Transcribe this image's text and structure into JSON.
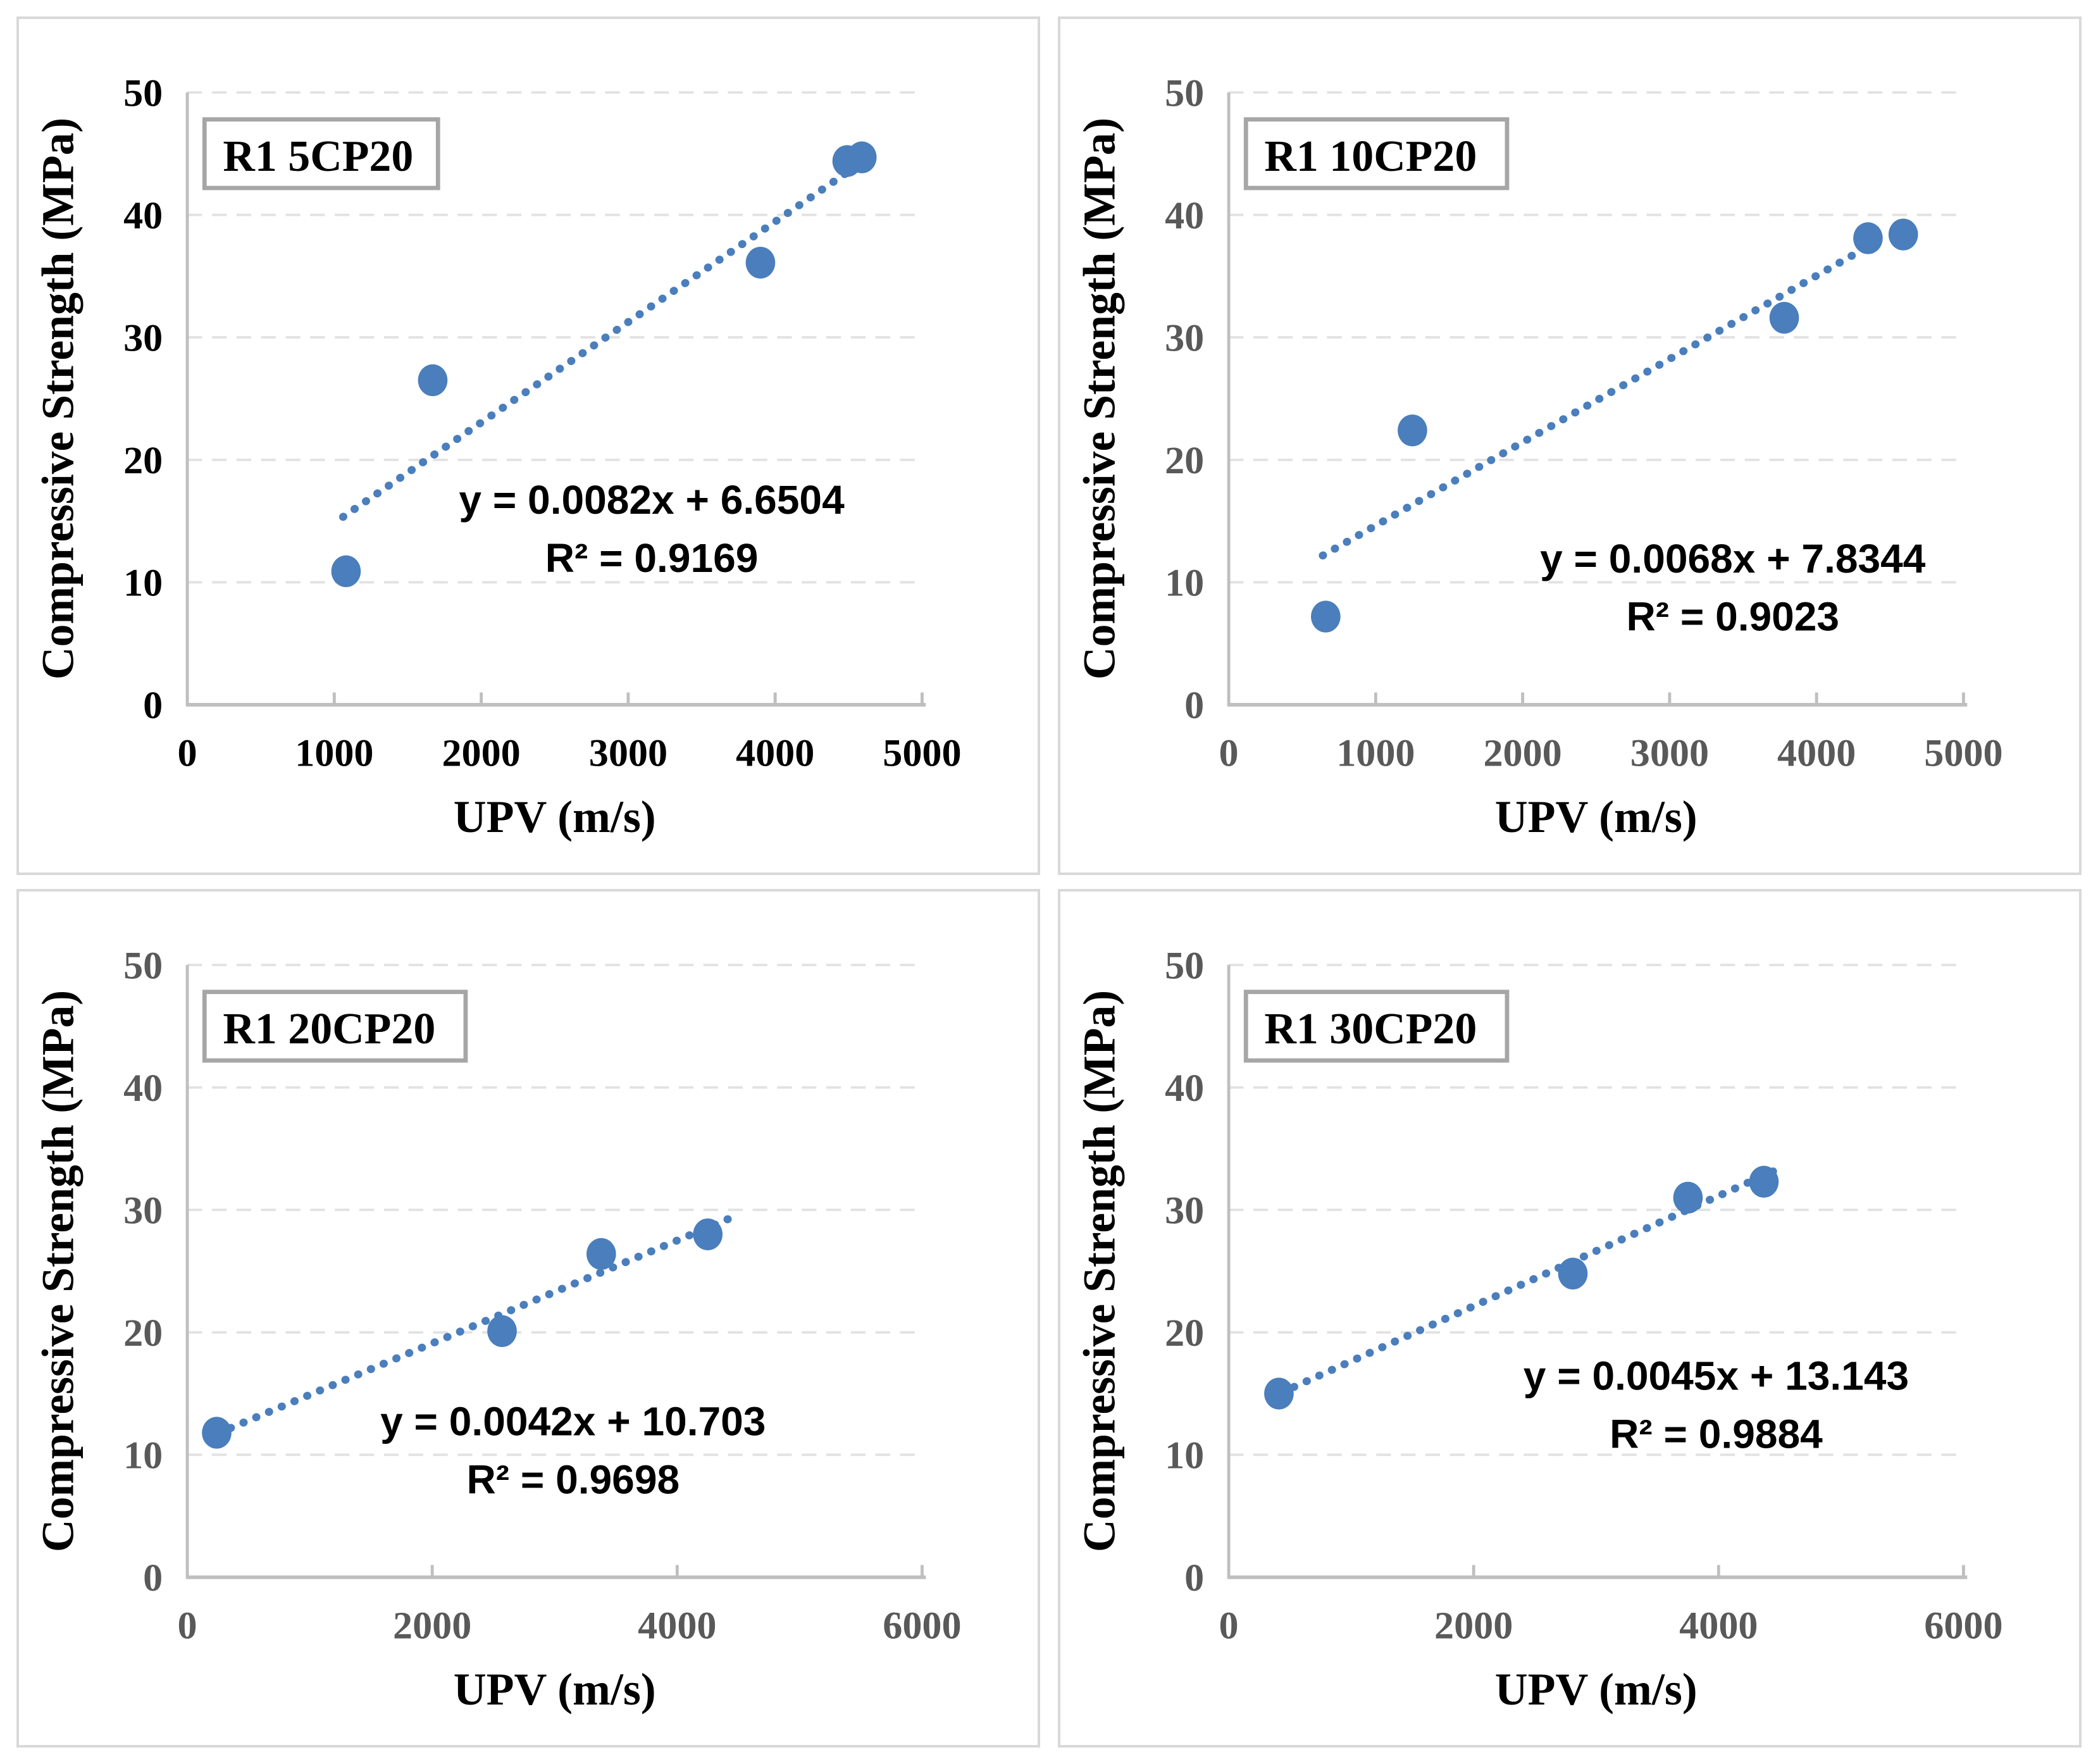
{
  "style": {
    "marker_color": "#4a7ebc",
    "trend_color": "#4a7ebc",
    "axis_color": "#bfbfbf",
    "grid_color": "#e2e2e2",
    "text_color": "#000000",
    "gray_tick_color": "#595959",
    "panel_border": "#d9d9d9",
    "label_box_border": "#a6a6a6",
    "label_box_fill": "#ffffff"
  },
  "chart_data": [
    {
      "type": "scatter",
      "label": "R1 5CP20",
      "xlabel": "UPV (m/s)",
      "ylabel": "Compressive Strength (MPa)",
      "xlim": [
        0,
        5000
      ],
      "ylim": [
        0,
        50
      ],
      "xticks": [
        0,
        1000,
        2000,
        3000,
        4000,
        5000
      ],
      "yticks": [
        0,
        10,
        20,
        30,
        40,
        50
      ],
      "grid": "horizontal-dashed",
      "legend": "none",
      "tick_label_color": "#000000",
      "points": [
        [
          1080,
          10.9
        ],
        [
          1670,
          26.5
        ],
        [
          3900,
          36.1
        ],
        [
          4490,
          44.4
        ],
        [
          4590,
          44.7
        ]
      ],
      "trendline": {
        "slope": 0.0082,
        "intercept": 6.6504,
        "x_start": 1060,
        "x_end": 4620,
        "style": "dotted"
      },
      "equation": "y = 0.0082x + 6.6504",
      "r2": "R² = 0.9169",
      "annotation_pos": [
        3160,
        16.8
      ]
    },
    {
      "type": "scatter",
      "label": "R1 10CP20",
      "xlabel": "UPV (m/s)",
      "ylabel": "Compressive Strength (MPa)",
      "xlim": [
        0,
        5000
      ],
      "ylim": [
        0,
        50
      ],
      "xticks": [
        0,
        1000,
        2000,
        3000,
        4000,
        5000
      ],
      "yticks": [
        0,
        10,
        20,
        30,
        40,
        50
      ],
      "grid": "horizontal-dashed",
      "legend": "none",
      "tick_label_color": "#595959",
      "points": [
        [
          660,
          7.2
        ],
        [
          1250,
          22.4
        ],
        [
          3780,
          31.6
        ],
        [
          4350,
          38.1
        ],
        [
          4590,
          38.4
        ]
      ],
      "trendline": {
        "slope": 0.0068,
        "intercept": 7.8344,
        "x_start": 640,
        "x_end": 4480,
        "style": "dotted"
      },
      "equation": "y = 0.0068x + 7.8344",
      "r2": "R² = 0.9023",
      "annotation_pos": [
        3430,
        12.0
      ]
    },
    {
      "type": "scatter",
      "label": "R1 20CP20",
      "xlabel": "UPV (m/s)",
      "ylabel": "Compressive Strength (MPa)",
      "xlim": [
        0,
        6000
      ],
      "ylim": [
        0,
        50
      ],
      "xticks": [
        0,
        2000,
        4000,
        6000
      ],
      "yticks": [
        0,
        10,
        20,
        30,
        40,
        50
      ],
      "grid": "horizontal-dashed",
      "legend": "none",
      "tick_label_color": "#595959",
      "points": [
        [
          240,
          11.8
        ],
        [
          2570,
          20.1
        ],
        [
          3380,
          26.4
        ],
        [
          4250,
          28.0
        ]
      ],
      "trendline": {
        "slope": 0.0042,
        "intercept": 10.703,
        "x_start": 250,
        "x_end": 4440,
        "style": "dotted"
      },
      "equation": "y = 0.0042x + 10.703",
      "r2": "R² = 0.9698",
      "annotation_pos": [
        3150,
        12.8
      ]
    },
    {
      "type": "scatter",
      "label": "R1 30CP20",
      "xlabel": "UPV (m/s)",
      "ylabel": "Compressive Strength (MPa)",
      "xlim": [
        0,
        6000
      ],
      "ylim": [
        0,
        50
      ],
      "xticks": [
        0,
        2000,
        4000,
        6000
      ],
      "yticks": [
        0,
        10,
        20,
        30,
        40,
        50
      ],
      "grid": "horizontal-dashed",
      "legend": "none",
      "tick_label_color": "#595959",
      "points": [
        [
          410,
          15.0
        ],
        [
          2810,
          24.8
        ],
        [
          3750,
          31.0
        ],
        [
          4370,
          32.3
        ]
      ],
      "trendline": {
        "slope": 0.0045,
        "intercept": 13.143,
        "x_start": 430,
        "x_end": 4540,
        "style": "dotted"
      },
      "equation": "y = 0.0045x + 13.143",
      "r2": "R² = 0.9884",
      "annotation_pos": [
        3980,
        16.5
      ]
    }
  ]
}
